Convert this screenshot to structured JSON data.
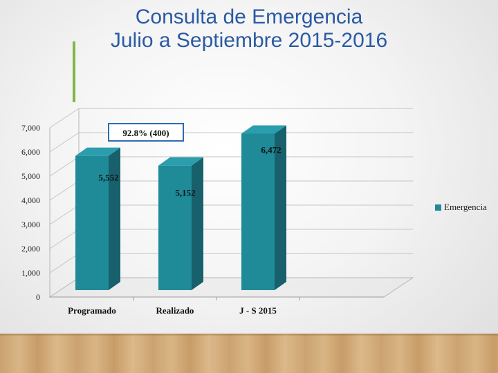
{
  "title_line1": "Consulta de Emergencia",
  "title_line2": "Julio a Septiembre 2015-2016",
  "annotation": "92.8% (400)",
  "legend": {
    "label": "Emergencia"
  },
  "colors": {
    "bar_front": "#1f8a98",
    "bar_side": "#17606c",
    "bar_top": "#2a9eac",
    "title": "#2b5aa3",
    "accent": "#7fb843",
    "annotation_border": "#2b6cb5"
  },
  "chart_data": {
    "type": "bar",
    "categories": [
      "Programado",
      "Realizado",
      "J - S 2015"
    ],
    "series": [
      {
        "name": "Emergencia",
        "values": [
          5552,
          5152,
          6472
        ]
      }
    ],
    "data_labels": [
      "5,552",
      "5,152",
      "6,472"
    ],
    "yticks": [
      "0",
      "1,000",
      "2,000",
      "3,000",
      "4,000",
      "5,000",
      "6,000",
      "7,000"
    ],
    "ylim": [
      0,
      7000
    ],
    "grid": true,
    "legend_position": "right",
    "style": "3d"
  }
}
